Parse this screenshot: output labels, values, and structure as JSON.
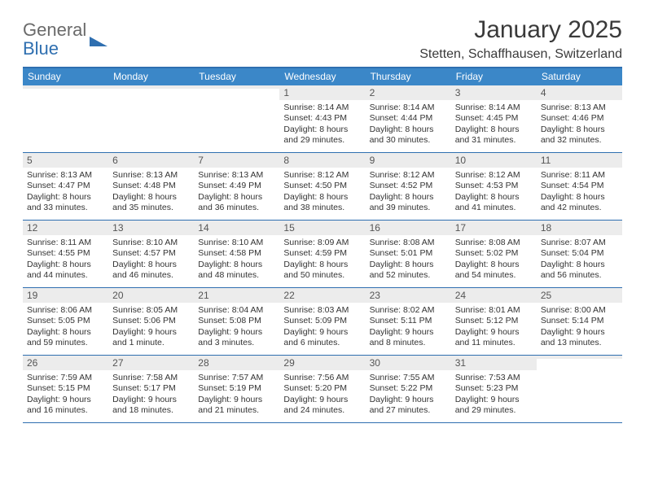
{
  "logo": {
    "word1": "General",
    "word2": "Blue"
  },
  "title": "January 2025",
  "location": "Stetten, Schaffhausen, Switzerland",
  "colors": {
    "header_bar": "#3b87c8",
    "header_border": "#2f6fb0",
    "daynum_bg": "#ececec",
    "text": "#333333",
    "logo_gray": "#6a6a6a",
    "logo_blue": "#2f6fb0",
    "background": "#ffffff"
  },
  "typography": {
    "title_fontsize": 30,
    "location_fontsize": 16,
    "dow_fontsize": 12,
    "daynum_fontsize": 12,
    "info_fontsize": 10.5
  },
  "days_of_week": [
    "Sunday",
    "Monday",
    "Tuesday",
    "Wednesday",
    "Thursday",
    "Friday",
    "Saturday"
  ],
  "weeks": [
    [
      {
        "blank": true
      },
      {
        "blank": true
      },
      {
        "blank": true
      },
      {
        "n": "1",
        "sunrise": "8:14 AM",
        "sunset": "4:43 PM",
        "daylight": "8 hours and 29 minutes."
      },
      {
        "n": "2",
        "sunrise": "8:14 AM",
        "sunset": "4:44 PM",
        "daylight": "8 hours and 30 minutes."
      },
      {
        "n": "3",
        "sunrise": "8:14 AM",
        "sunset": "4:45 PM",
        "daylight": "8 hours and 31 minutes."
      },
      {
        "n": "4",
        "sunrise": "8:13 AM",
        "sunset": "4:46 PM",
        "daylight": "8 hours and 32 minutes."
      }
    ],
    [
      {
        "n": "5",
        "sunrise": "8:13 AM",
        "sunset": "4:47 PM",
        "daylight": "8 hours and 33 minutes."
      },
      {
        "n": "6",
        "sunrise": "8:13 AM",
        "sunset": "4:48 PM",
        "daylight": "8 hours and 35 minutes."
      },
      {
        "n": "7",
        "sunrise": "8:13 AM",
        "sunset": "4:49 PM",
        "daylight": "8 hours and 36 minutes."
      },
      {
        "n": "8",
        "sunrise": "8:12 AM",
        "sunset": "4:50 PM",
        "daylight": "8 hours and 38 minutes."
      },
      {
        "n": "9",
        "sunrise": "8:12 AM",
        "sunset": "4:52 PM",
        "daylight": "8 hours and 39 minutes."
      },
      {
        "n": "10",
        "sunrise": "8:12 AM",
        "sunset": "4:53 PM",
        "daylight": "8 hours and 41 minutes."
      },
      {
        "n": "11",
        "sunrise": "8:11 AM",
        "sunset": "4:54 PM",
        "daylight": "8 hours and 42 minutes."
      }
    ],
    [
      {
        "n": "12",
        "sunrise": "8:11 AM",
        "sunset": "4:55 PM",
        "daylight": "8 hours and 44 minutes."
      },
      {
        "n": "13",
        "sunrise": "8:10 AM",
        "sunset": "4:57 PM",
        "daylight": "8 hours and 46 minutes."
      },
      {
        "n": "14",
        "sunrise": "8:10 AM",
        "sunset": "4:58 PM",
        "daylight": "8 hours and 48 minutes."
      },
      {
        "n": "15",
        "sunrise": "8:09 AM",
        "sunset": "4:59 PM",
        "daylight": "8 hours and 50 minutes."
      },
      {
        "n": "16",
        "sunrise": "8:08 AM",
        "sunset": "5:01 PM",
        "daylight": "8 hours and 52 minutes."
      },
      {
        "n": "17",
        "sunrise": "8:08 AM",
        "sunset": "5:02 PM",
        "daylight": "8 hours and 54 minutes."
      },
      {
        "n": "18",
        "sunrise": "8:07 AM",
        "sunset": "5:04 PM",
        "daylight": "8 hours and 56 minutes."
      }
    ],
    [
      {
        "n": "19",
        "sunrise": "8:06 AM",
        "sunset": "5:05 PM",
        "daylight": "8 hours and 59 minutes."
      },
      {
        "n": "20",
        "sunrise": "8:05 AM",
        "sunset": "5:06 PM",
        "daylight": "9 hours and 1 minute."
      },
      {
        "n": "21",
        "sunrise": "8:04 AM",
        "sunset": "5:08 PM",
        "daylight": "9 hours and 3 minutes."
      },
      {
        "n": "22",
        "sunrise": "8:03 AM",
        "sunset": "5:09 PM",
        "daylight": "9 hours and 6 minutes."
      },
      {
        "n": "23",
        "sunrise": "8:02 AM",
        "sunset": "5:11 PM",
        "daylight": "9 hours and 8 minutes."
      },
      {
        "n": "24",
        "sunrise": "8:01 AM",
        "sunset": "5:12 PM",
        "daylight": "9 hours and 11 minutes."
      },
      {
        "n": "25",
        "sunrise": "8:00 AM",
        "sunset": "5:14 PM",
        "daylight": "9 hours and 13 minutes."
      }
    ],
    [
      {
        "n": "26",
        "sunrise": "7:59 AM",
        "sunset": "5:15 PM",
        "daylight": "9 hours and 16 minutes."
      },
      {
        "n": "27",
        "sunrise": "7:58 AM",
        "sunset": "5:17 PM",
        "daylight": "9 hours and 18 minutes."
      },
      {
        "n": "28",
        "sunrise": "7:57 AM",
        "sunset": "5:19 PM",
        "daylight": "9 hours and 21 minutes."
      },
      {
        "n": "29",
        "sunrise": "7:56 AM",
        "sunset": "5:20 PM",
        "daylight": "9 hours and 24 minutes."
      },
      {
        "n": "30",
        "sunrise": "7:55 AM",
        "sunset": "5:22 PM",
        "daylight": "9 hours and 27 minutes."
      },
      {
        "n": "31",
        "sunrise": "7:53 AM",
        "sunset": "5:23 PM",
        "daylight": "9 hours and 29 minutes."
      },
      {
        "blank": true
      }
    ]
  ],
  "labels": {
    "sunrise": "Sunrise:",
    "sunset": "Sunset:",
    "daylight": "Daylight:"
  }
}
